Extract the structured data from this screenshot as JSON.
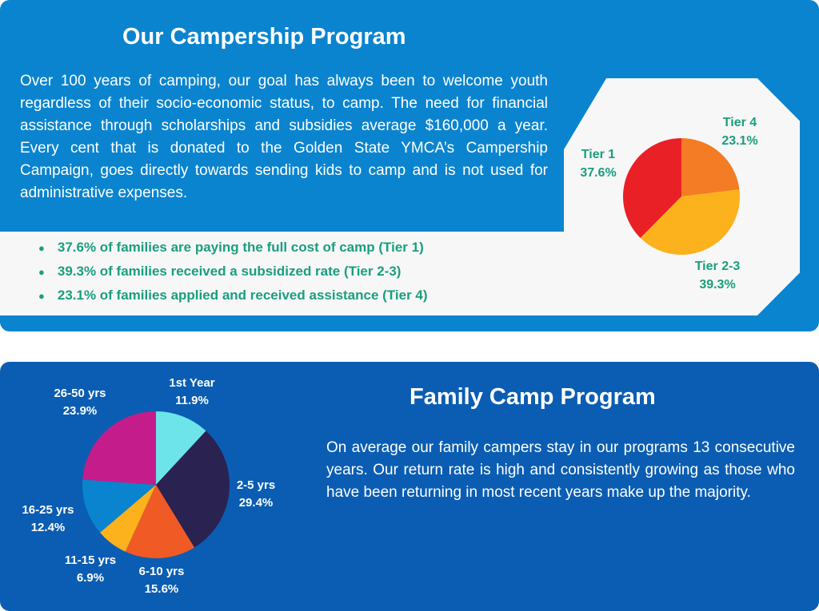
{
  "top": {
    "title": "Our Campership Program",
    "text": "Over 100 years of camping, our goal has always been to welcome youth regardless of their socio-economic status, to camp. The need for financial assistance through scholarships and subsidies average $160,000 a year. Every cent that is donated to the Golden State YMCA’s Campership Campaign, goes directly towards sending kids to camp and is not used for administrative expenses.",
    "bullets": [
      "37.6% of families are paying the full cost of camp (Tier 1)",
      "39.3% of families received a subsidized rate (Tier 2-3)",
      "23.1% of families applied and received assistance (Tier 4)"
    ]
  },
  "bottom": {
    "title": "Family Camp Program",
    "text": "On average our family campers stay in our programs 13 consecutive years. Our return rate is high and consistently growing as those who have been returning in most recent years make up the majority."
  },
  "chart_data": [
    {
      "type": "pie",
      "categories": [
        "Tier 4",
        "Tier 2-3",
        "Tier 1"
      ],
      "values": [
        23.1,
        39.3,
        37.6
      ],
      "labels": [
        "23.1%",
        "39.3%",
        "37.6%"
      ],
      "colors": [
        "#f37c24",
        "#fbb21c",
        "#ea2027"
      ]
    },
    {
      "type": "pie",
      "categories": [
        "1st Year",
        "2-5 yrs",
        "6-10 yrs",
        "11-15 yrs",
        "16-25 yrs",
        "26-50 yrs"
      ],
      "values": [
        11.9,
        29.4,
        15.6,
        6.9,
        12.4,
        23.9
      ],
      "labels": [
        "11.9%",
        "29.4%",
        "15.6%",
        "6.9%",
        "12.4%",
        "23.9%"
      ],
      "colors": [
        "#6de4ea",
        "#2a2250",
        "#f05a24",
        "#fbb21c",
        "#0a84cf",
        "#c51c8c"
      ]
    }
  ]
}
